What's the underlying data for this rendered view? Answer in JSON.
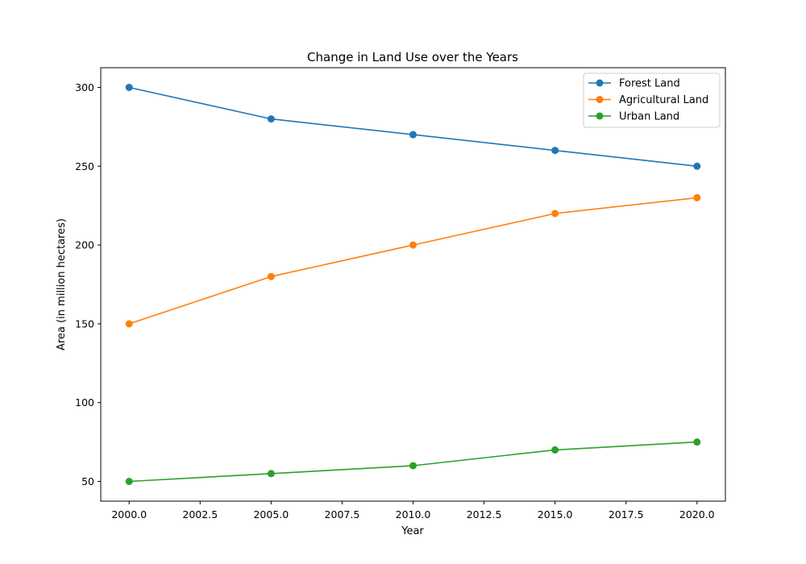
{
  "chart_data": {
    "type": "line",
    "title": "Change in Land Use over the Years",
    "xlabel": "Year",
    "ylabel": "Area (in million hectares)",
    "x": [
      2000,
      2005,
      2010,
      2015,
      2020
    ],
    "xlim": [
      1999,
      2021
    ],
    "ylim": [
      37.5,
      312.5
    ],
    "x_ticks": [
      2000.0,
      2002.5,
      2005.0,
      2007.5,
      2010.0,
      2012.5,
      2015.0,
      2017.5,
      2020.0
    ],
    "x_tick_labels": [
      "2000.0",
      "2002.5",
      "2005.0",
      "2007.5",
      "2010.0",
      "2012.5",
      "2015.0",
      "2017.5",
      "2020.0"
    ],
    "y_ticks": [
      50,
      100,
      150,
      200,
      250,
      300
    ],
    "y_tick_labels": [
      "50",
      "100",
      "150",
      "200",
      "250",
      "300"
    ],
    "grid": false,
    "legend_position": "top-right",
    "series": [
      {
        "name": "Forest Land",
        "color": "#1f77b4",
        "values": [
          300,
          280,
          270,
          260,
          250
        ]
      },
      {
        "name": "Agricultural Land",
        "color": "#ff7f0e",
        "values": [
          150,
          180,
          200,
          220,
          230
        ]
      },
      {
        "name": "Urban Land",
        "color": "#2ca02c",
        "values": [
          50,
          55,
          60,
          70,
          75
        ]
      }
    ]
  }
}
